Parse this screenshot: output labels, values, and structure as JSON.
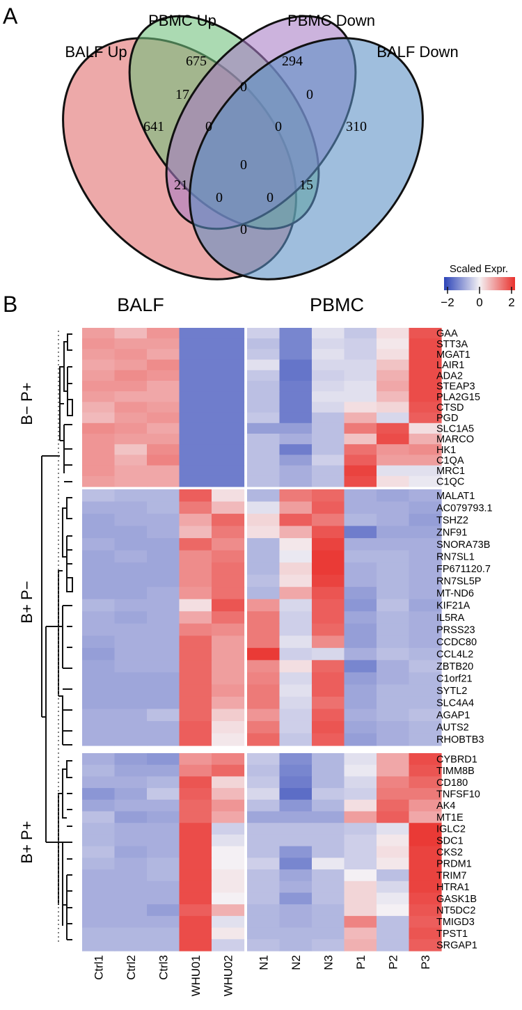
{
  "panel_a": {
    "letter": "A",
    "sets": [
      "BALF Up",
      "PBMC Up",
      "PBMC Down",
      "BALF Down"
    ],
    "colors": [
      "#e06b6b",
      "#6fc07a",
      "#a77cc4",
      "#5a8fc4"
    ],
    "regions": {
      "balf_up_only": "641",
      "pbmc_up_only": "675",
      "pbmc_down_only": "294",
      "balf_down_only": "310",
      "balf_up_pbmc_up": "17",
      "pbmc_up_pbmc_down": "0",
      "pbmc_down_balf_down": "0",
      "balf_up_pbmc_down": "21",
      "pbmc_up_balf_down": "15",
      "balf_up_balf_down": "0",
      "upper_left_triple": "0",
      "upper_right_triple": "0",
      "center_all": "0",
      "lower_left_triple": "0",
      "lower_right_triple": "0"
    }
  },
  "panel_b": {
    "letter": "B",
    "legend": {
      "title": "Scaled Expr.",
      "ticks": [
        "−2",
        "0",
        "2"
      ]
    },
    "group_headers": [
      "BALF",
      "PBMC"
    ],
    "columns": [
      "Ctrl1",
      "Ctrl2",
      "Ctrl3",
      "WHU01",
      "WHU02",
      "N1",
      "N2",
      "N3",
      "P1",
      "P2",
      "P3"
    ],
    "clusters": [
      {
        "label": "B− P+",
        "genes": [
          "GAA",
          "STT3A",
          "MGAT1",
          "LAIR1",
          "ADA2",
          "STEAP3",
          "PLA2G15",
          "CTSD",
          "PGD",
          "SLC1A5",
          "MARCO",
          "HK1",
          "C1QA",
          "MRC1",
          "C1QC"
        ],
        "values": [
          [
            0.9,
            0.6,
            1.0,
            -1.4,
            -1.4,
            -0.4,
            -1.3,
            -0.2,
            -0.5,
            0.2,
            1.7
          ],
          [
            1.0,
            0.9,
            0.9,
            -1.4,
            -1.4,
            -0.6,
            -1.3,
            -0.3,
            -0.4,
            0.1,
            1.8
          ],
          [
            0.9,
            1.0,
            0.8,
            -1.4,
            -1.4,
            -0.5,
            -1.3,
            -0.2,
            -0.4,
            0.2,
            1.8
          ],
          [
            0.8,
            0.9,
            1.1,
            -1.4,
            -1.4,
            -0.2,
            -1.5,
            -0.3,
            -0.3,
            0.5,
            1.8
          ],
          [
            0.9,
            1.1,
            1.0,
            -1.4,
            -1.4,
            -0.5,
            -1.5,
            -0.4,
            -0.3,
            0.7,
            1.8
          ],
          [
            1.0,
            1.0,
            0.8,
            -1.4,
            -1.4,
            -0.6,
            -1.4,
            -0.3,
            -0.2,
            0.8,
            1.8
          ],
          [
            0.9,
            0.8,
            0.8,
            -1.4,
            -1.4,
            -0.6,
            -1.4,
            -0.2,
            -0.2,
            0.6,
            1.8
          ],
          [
            0.7,
            1.0,
            0.9,
            -1.4,
            -1.4,
            -0.6,
            -1.4,
            -0.3,
            0.2,
            0.3,
            1.7
          ],
          [
            0.6,
            0.9,
            1.0,
            -1.4,
            -1.4,
            -0.5,
            -1.4,
            -0.6,
            0.7,
            -0.3,
            1.6
          ],
          [
            1.1,
            1.0,
            0.8,
            -1.4,
            -1.4,
            -1.0,
            -1.0,
            -0.6,
            1.3,
            1.7,
            0.2
          ],
          [
            1.0,
            0.9,
            0.9,
            -1.4,
            -1.4,
            -0.6,
            -0.8,
            -0.6,
            0.5,
            1.8,
            0.7
          ],
          [
            1.0,
            0.5,
            1.1,
            -1.4,
            -1.4,
            -0.6,
            -1.4,
            -0.6,
            1.4,
            1.0,
            1.1
          ],
          [
            1.0,
            0.7,
            1.2,
            -1.4,
            -1.4,
            -0.6,
            -1.0,
            -0.4,
            1.6,
            0.9,
            0.9
          ],
          [
            1.0,
            0.8,
            0.8,
            -1.4,
            -1.4,
            -0.6,
            -0.8,
            -0.6,
            1.9,
            -0.2,
            -0.2
          ],
          [
            0.9,
            0.8,
            0.8,
            -1.4,
            -1.4,
            -0.6,
            -0.8,
            -0.6,
            1.8,
            0.2,
            -0.1
          ]
        ]
      },
      {
        "label": "B+ P−",
        "genes": [
          "MALAT1",
          "AC079793.1",
          "TSHZ2",
          "ZNF91",
          "SNORA73B",
          "RN7SL1",
          "FP671120.7",
          "RN7SL5P",
          "MT-ND6",
          "KIF21A",
          "IL5RA",
          "PRSS23",
          "CCDC80",
          "CCL4L2",
          "ZBTB20",
          "C1orf21",
          "SYTL2",
          "SLC4A4",
          "AGAP1",
          "AUTS2",
          "RHOBTB3"
        ],
        "values": [
          [
            -0.6,
            -0.7,
            -0.7,
            1.6,
            0.2,
            -0.7,
            1.3,
            1.5,
            -0.8,
            -0.9,
            -0.8
          ],
          [
            -0.8,
            -0.8,
            -0.7,
            1.3,
            0.6,
            -0.2,
            0.9,
            1.6,
            -0.8,
            -0.8,
            -0.9
          ],
          [
            -0.9,
            -0.8,
            -0.8,
            0.8,
            1.5,
            0.3,
            1.6,
            1.3,
            -0.7,
            -0.8,
            -1.0
          ],
          [
            -0.9,
            -0.9,
            -0.8,
            0.6,
            1.3,
            0.2,
            0.7,
            1.7,
            -1.4,
            -0.9,
            -0.9
          ],
          [
            -0.8,
            -0.9,
            -0.9,
            1.5,
            1.1,
            -0.7,
            0.1,
            1.9,
            -0.8,
            -0.8,
            -0.8
          ],
          [
            -0.9,
            -0.8,
            -0.9,
            1.1,
            1.3,
            -0.7,
            -0.1,
            2.0,
            -0.7,
            -0.7,
            -0.8
          ],
          [
            -0.9,
            -0.9,
            -0.9,
            1.1,
            1.4,
            -0.7,
            0.3,
            2.0,
            -0.8,
            -0.7,
            -0.8
          ],
          [
            -0.9,
            -0.9,
            -0.9,
            1.1,
            1.4,
            -0.6,
            0.2,
            1.9,
            -0.8,
            -0.7,
            -0.8
          ],
          [
            -0.9,
            -0.9,
            -0.8,
            1.0,
            1.4,
            -0.7,
            0.8,
            1.7,
            -1.0,
            -0.7,
            -0.8
          ],
          [
            -0.7,
            -0.8,
            -0.8,
            0.2,
            1.7,
            1.0,
            -0.3,
            1.6,
            -1.1,
            -0.6,
            -0.9
          ],
          [
            -0.8,
            -0.9,
            -0.8,
            0.8,
            1.4,
            1.3,
            -0.4,
            1.6,
            -0.9,
            -0.7,
            -0.8
          ],
          [
            -0.8,
            -0.8,
            -0.8,
            1.2,
            1.1,
            1.3,
            -0.4,
            1.5,
            -1.0,
            -0.7,
            -0.8
          ],
          [
            -0.9,
            -0.8,
            -0.8,
            1.5,
            0.9,
            1.3,
            -0.2,
            1.1,
            -1.0,
            -0.7,
            -0.8
          ],
          [
            -1.0,
            -0.8,
            -0.8,
            1.5,
            0.9,
            2.0,
            -0.4,
            -0.3,
            -0.8,
            -0.6,
            -0.7
          ],
          [
            -0.9,
            -0.8,
            -0.8,
            1.5,
            0.9,
            1.1,
            0.2,
            1.5,
            -1.3,
            -0.8,
            -0.6
          ],
          [
            -0.9,
            -0.9,
            -0.9,
            1.5,
            0.9,
            1.2,
            -0.3,
            1.6,
            -1.0,
            -0.8,
            -0.7
          ],
          [
            -0.9,
            -0.9,
            -0.9,
            1.5,
            1.0,
            1.3,
            -0.2,
            1.6,
            -0.9,
            -0.7,
            -0.7
          ],
          [
            -0.9,
            -0.9,
            -0.9,
            1.5,
            0.8,
            1.3,
            -0.3,
            1.4,
            -0.9,
            -0.7,
            -0.7
          ],
          [
            -0.8,
            -0.8,
            -0.6,
            1.5,
            0.4,
            1.0,
            -0.4,
            1.6,
            -0.8,
            -0.7,
            -0.6
          ],
          [
            -0.8,
            -0.8,
            -0.8,
            1.6,
            0.2,
            1.3,
            -0.4,
            1.7,
            -0.9,
            -0.8,
            -0.7
          ],
          [
            -0.8,
            -0.8,
            -0.8,
            1.6,
            0.1,
            1.5,
            -0.5,
            1.6,
            -1.0,
            -0.8,
            -0.7
          ]
        ]
      },
      {
        "label": "B+ P+",
        "genes": [
          "CYBRD1",
          "TIMM8B",
          "CD180",
          "TNFSF10",
          "AK4",
          "MT1E",
          "IGLC2",
          "SDC1",
          "CKS2",
          "PRDM1",
          "TRIM7",
          "HTRA1",
          "GASK1B",
          "NT5DC2",
          "TMIGD3",
          "TPST1",
          "SRGAP1"
        ],
        "values": [
          [
            -0.8,
            -1.0,
            -1.1,
            1.0,
            1.2,
            -0.5,
            -1.2,
            -0.7,
            -0.2,
            0.8,
            1.8
          ],
          [
            -0.7,
            -0.9,
            -0.9,
            1.2,
            1.5,
            -0.6,
            -1.3,
            -0.7,
            -0.1,
            0.8,
            1.7
          ],
          [
            -0.8,
            -0.8,
            -0.7,
            1.7,
            0.3,
            -0.5,
            -1.4,
            -0.7,
            -0.3,
            1.2,
            1.5
          ],
          [
            -1.1,
            -0.9,
            -0.5,
            1.6,
            0.6,
            -0.3,
            -1.6,
            -0.5,
            -0.4,
            1.3,
            1.3
          ],
          [
            -0.9,
            -0.8,
            -0.8,
            1.5,
            1.0,
            -0.6,
            -1.1,
            -0.7,
            0.2,
            1.5,
            1.0
          ],
          [
            -0.6,
            -1.0,
            -0.9,
            1.5,
            0.8,
            -0.9,
            -0.9,
            -0.9,
            0.9,
            1.6,
            0.8
          ],
          [
            -0.7,
            -0.8,
            -0.8,
            1.8,
            -0.4,
            -0.6,
            -0.6,
            -0.6,
            -0.5,
            -0.2,
            2.0
          ],
          [
            -0.7,
            -0.8,
            -0.8,
            1.8,
            -0.2,
            -0.6,
            -0.6,
            -0.6,
            -0.4,
            0.1,
            2.0
          ],
          [
            -0.6,
            -0.9,
            -0.8,
            1.8,
            0.0,
            -0.6,
            -1.1,
            -0.6,
            -0.4,
            0.2,
            1.9
          ],
          [
            -0.7,
            -0.8,
            -0.7,
            1.8,
            0.0,
            -0.4,
            -1.3,
            -0.1,
            -0.4,
            0.1,
            1.9
          ],
          [
            -0.8,
            -0.8,
            -0.7,
            1.8,
            0.1,
            -0.6,
            -0.9,
            -0.6,
            0.0,
            -0.6,
            1.9
          ],
          [
            -0.8,
            -0.8,
            -0.8,
            1.8,
            0.1,
            -0.6,
            -0.8,
            -0.6,
            0.3,
            -0.3,
            1.9
          ],
          [
            -0.8,
            -0.8,
            -0.8,
            1.8,
            0.0,
            -0.6,
            -1.1,
            -0.6,
            0.3,
            -0.1,
            1.8
          ],
          [
            -0.8,
            -0.8,
            -1.0,
            1.6,
            0.7,
            -0.7,
            -0.8,
            -0.7,
            0.3,
            0.0,
            1.7
          ],
          [
            -0.8,
            -0.8,
            -0.8,
            1.8,
            -0.2,
            -0.7,
            -0.8,
            -0.7,
            1.2,
            -0.6,
            1.6
          ],
          [
            -0.7,
            -0.7,
            -0.7,
            1.8,
            0.1,
            -0.7,
            -0.7,
            -0.7,
            0.6,
            -0.6,
            1.7
          ],
          [
            -0.7,
            -0.7,
            -0.7,
            1.8,
            -0.4,
            -0.6,
            -0.7,
            -0.6,
            0.7,
            -0.6,
            1.6
          ]
        ]
      }
    ]
  }
}
